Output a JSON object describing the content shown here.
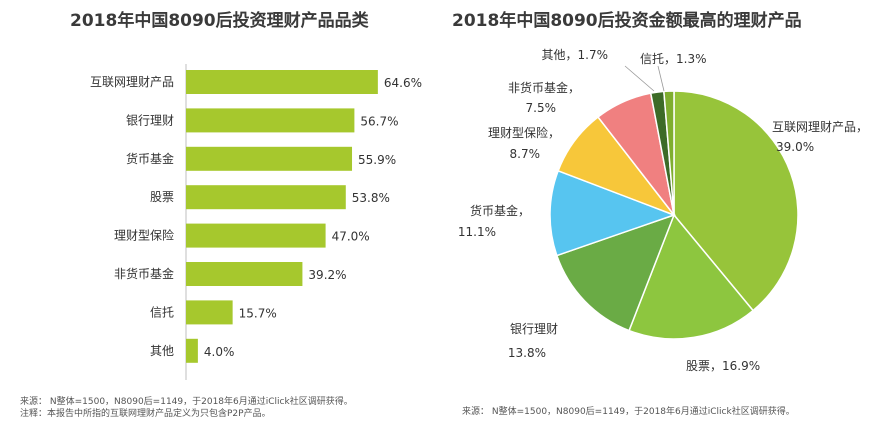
{
  "chart_data": [
    {
      "type": "bar",
      "orientation": "horizontal",
      "title": "2018年中国8090后投资理财产品品类",
      "categories": [
        "互联网理财产品",
        "银行理财",
        "货币基金",
        "股票",
        "理财型保险",
        "非货币基金",
        "信托",
        "其他"
      ],
      "values": [
        64.6,
        56.7,
        55.9,
        53.8,
        47.0,
        39.2,
        15.7,
        4.0
      ],
      "value_labels": [
        "64.6%",
        "56.7%",
        "55.9%",
        "53.8%",
        "47.0%",
        "39.2%",
        "15.7%",
        "4.0%"
      ],
      "xlim": [
        0,
        100
      ],
      "color": "#a6c82d",
      "notes": [
        "来源： N整体=1500，N8090后=1149，于2018年6月通过iClick社区调研获得。",
        "注释：本报告中所指的互联网理财产品定义为只包含P2P产品。"
      ]
    },
    {
      "type": "pie",
      "title": "2018年中国8090后投资金额最高的理财产品",
      "slices": [
        {
          "name": "互联网理财产品",
          "value": 39.0,
          "label": "互联网理财产品，",
          "pct": "39.0%",
          "color": "#97c43a"
        },
        {
          "name": "股票",
          "value": 16.9,
          "label": "股票，16.9%",
          "color": "#8dc63f"
        },
        {
          "name": "银行理财",
          "value": 13.8,
          "label": "银行理财",
          "pct": "13.8%",
          "color": "#6aab45"
        },
        {
          "name": "货币基金",
          "value": 11.1,
          "label": "货币基金，",
          "pct": "11.1%",
          "color": "#57c5f0"
        },
        {
          "name": "理财型保险",
          "value": 8.7,
          "label": "理财型保险，",
          "pct": "8.7%",
          "color": "#f7c73a"
        },
        {
          "name": "非货币基金",
          "value": 7.5,
          "label": "非货币基金，",
          "pct": "7.5%",
          "color": "#f08080"
        },
        {
          "name": "其他",
          "value": 1.7,
          "label": "其他，1.7%",
          "color": "#3d6b27"
        },
        {
          "name": "信托",
          "value": 1.3,
          "label": "信托，1.3%",
          "color": "#7fae2f"
        }
      ],
      "notes": [
        "来源： N整体=1500，N8090后=1149，于2018年6月通过iClick社区调研获得。"
      ]
    }
  ]
}
